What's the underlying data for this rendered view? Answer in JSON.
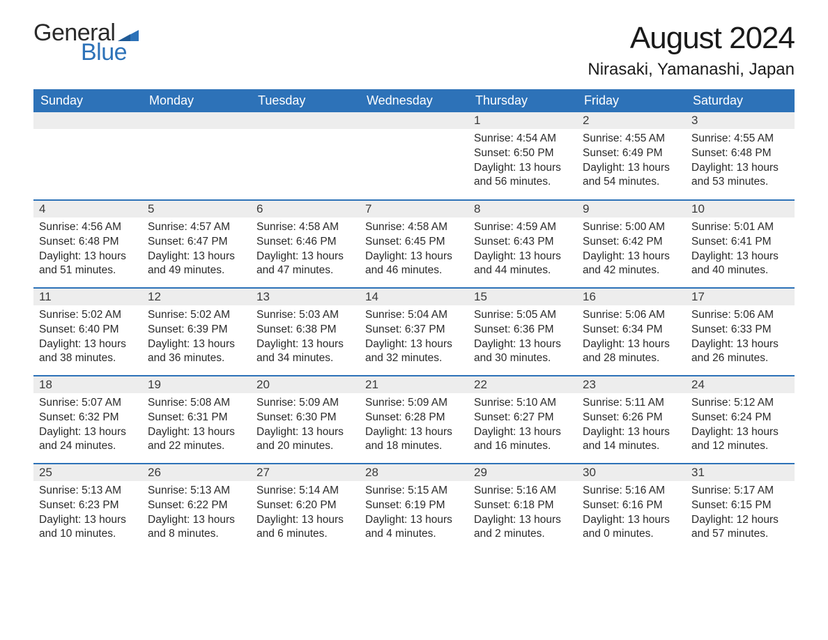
{
  "logo": {
    "text_general": "General",
    "text_blue": "Blue",
    "flag_color": "#2d72b8"
  },
  "title": "August 2024",
  "location": "Nirasaki, Yamanashi, Japan",
  "colors": {
    "header_bg": "#2d72b8",
    "header_text": "#ffffff",
    "daynum_bg": "#ededed",
    "row_divider": "#2d72b8",
    "body_text": "#2a2a2a",
    "page_bg": "#ffffff"
  },
  "layout": {
    "columns": 7,
    "rows": 5,
    "first_day_column_index": 4,
    "font_family": "Arial",
    "title_fontsize": 44,
    "location_fontsize": 24,
    "weekday_fontsize": 18,
    "daynum_fontsize": 17,
    "body_fontsize": 15.5
  },
  "weekdays": [
    "Sunday",
    "Monday",
    "Tuesday",
    "Wednesday",
    "Thursday",
    "Friday",
    "Saturday"
  ],
  "labels": {
    "sunrise": "Sunrise:",
    "sunset": "Sunset:",
    "daylight": "Daylight:"
  },
  "days": [
    {
      "n": 1,
      "sunrise": "4:54 AM",
      "sunset": "6:50 PM",
      "daylight": "13 hours and 56 minutes."
    },
    {
      "n": 2,
      "sunrise": "4:55 AM",
      "sunset": "6:49 PM",
      "daylight": "13 hours and 54 minutes."
    },
    {
      "n": 3,
      "sunrise": "4:55 AM",
      "sunset": "6:48 PM",
      "daylight": "13 hours and 53 minutes."
    },
    {
      "n": 4,
      "sunrise": "4:56 AM",
      "sunset": "6:48 PM",
      "daylight": "13 hours and 51 minutes."
    },
    {
      "n": 5,
      "sunrise": "4:57 AM",
      "sunset": "6:47 PM",
      "daylight": "13 hours and 49 minutes."
    },
    {
      "n": 6,
      "sunrise": "4:58 AM",
      "sunset": "6:46 PM",
      "daylight": "13 hours and 47 minutes."
    },
    {
      "n": 7,
      "sunrise": "4:58 AM",
      "sunset": "6:45 PM",
      "daylight": "13 hours and 46 minutes."
    },
    {
      "n": 8,
      "sunrise": "4:59 AM",
      "sunset": "6:43 PM",
      "daylight": "13 hours and 44 minutes."
    },
    {
      "n": 9,
      "sunrise": "5:00 AM",
      "sunset": "6:42 PM",
      "daylight": "13 hours and 42 minutes."
    },
    {
      "n": 10,
      "sunrise": "5:01 AM",
      "sunset": "6:41 PM",
      "daylight": "13 hours and 40 minutes."
    },
    {
      "n": 11,
      "sunrise": "5:02 AM",
      "sunset": "6:40 PM",
      "daylight": "13 hours and 38 minutes."
    },
    {
      "n": 12,
      "sunrise": "5:02 AM",
      "sunset": "6:39 PM",
      "daylight": "13 hours and 36 minutes."
    },
    {
      "n": 13,
      "sunrise": "5:03 AM",
      "sunset": "6:38 PM",
      "daylight": "13 hours and 34 minutes."
    },
    {
      "n": 14,
      "sunrise": "5:04 AM",
      "sunset": "6:37 PM",
      "daylight": "13 hours and 32 minutes."
    },
    {
      "n": 15,
      "sunrise": "5:05 AM",
      "sunset": "6:36 PM",
      "daylight": "13 hours and 30 minutes."
    },
    {
      "n": 16,
      "sunrise": "5:06 AM",
      "sunset": "6:34 PM",
      "daylight": "13 hours and 28 minutes."
    },
    {
      "n": 17,
      "sunrise": "5:06 AM",
      "sunset": "6:33 PM",
      "daylight": "13 hours and 26 minutes."
    },
    {
      "n": 18,
      "sunrise": "5:07 AM",
      "sunset": "6:32 PM",
      "daylight": "13 hours and 24 minutes."
    },
    {
      "n": 19,
      "sunrise": "5:08 AM",
      "sunset": "6:31 PM",
      "daylight": "13 hours and 22 minutes."
    },
    {
      "n": 20,
      "sunrise": "5:09 AM",
      "sunset": "6:30 PM",
      "daylight": "13 hours and 20 minutes."
    },
    {
      "n": 21,
      "sunrise": "5:09 AM",
      "sunset": "6:28 PM",
      "daylight": "13 hours and 18 minutes."
    },
    {
      "n": 22,
      "sunrise": "5:10 AM",
      "sunset": "6:27 PM",
      "daylight": "13 hours and 16 minutes."
    },
    {
      "n": 23,
      "sunrise": "5:11 AM",
      "sunset": "6:26 PM",
      "daylight": "13 hours and 14 minutes."
    },
    {
      "n": 24,
      "sunrise": "5:12 AM",
      "sunset": "6:24 PM",
      "daylight": "13 hours and 12 minutes."
    },
    {
      "n": 25,
      "sunrise": "5:13 AM",
      "sunset": "6:23 PM",
      "daylight": "13 hours and 10 minutes."
    },
    {
      "n": 26,
      "sunrise": "5:13 AM",
      "sunset": "6:22 PM",
      "daylight": "13 hours and 8 minutes."
    },
    {
      "n": 27,
      "sunrise": "5:14 AM",
      "sunset": "6:20 PM",
      "daylight": "13 hours and 6 minutes."
    },
    {
      "n": 28,
      "sunrise": "5:15 AM",
      "sunset": "6:19 PM",
      "daylight": "13 hours and 4 minutes."
    },
    {
      "n": 29,
      "sunrise": "5:16 AM",
      "sunset": "6:18 PM",
      "daylight": "13 hours and 2 minutes."
    },
    {
      "n": 30,
      "sunrise": "5:16 AM",
      "sunset": "6:16 PM",
      "daylight": "13 hours and 0 minutes."
    },
    {
      "n": 31,
      "sunrise": "5:17 AM",
      "sunset": "6:15 PM",
      "daylight": "12 hours and 57 minutes."
    }
  ]
}
